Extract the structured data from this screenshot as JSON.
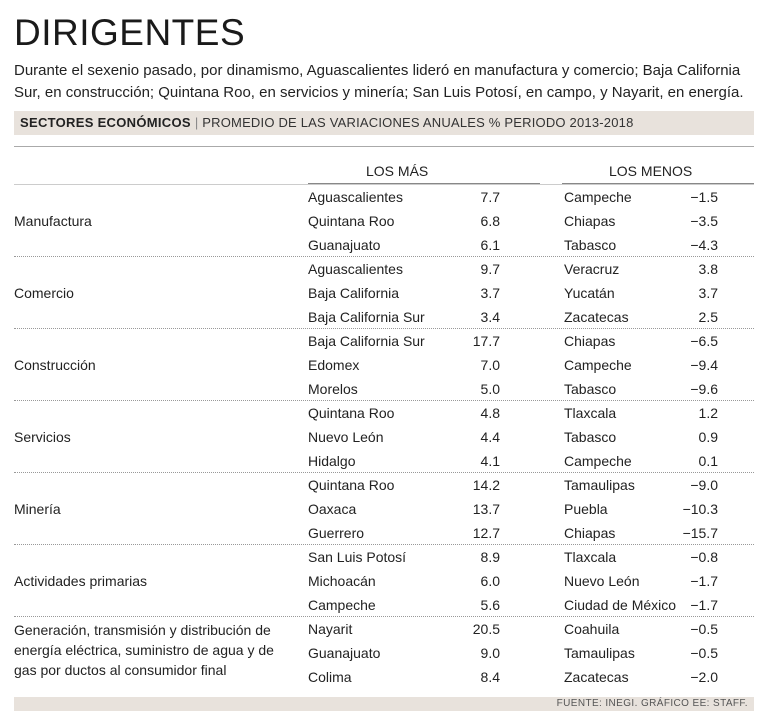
{
  "title": "DIRIGENTES",
  "subtitle": "Durante el sexenio pasado, por dinamismo, Aguascalientes lideró en manufactura y comercio; Baja California Sur, en construcción; Quintana Roo, en servicios y minería; San Luis Potosí, en campo, y Nayarit, en energía.",
  "bar": {
    "section": "SECTORES ECONÓMICOS",
    "separator": "|",
    "measure": "PROMEDIO DE LAS VARIACIONES ANUALES % PERIODO 2013-2018"
  },
  "headers": {
    "more": "LOS MÁS",
    "less": "LOS MENOS"
  },
  "groups": [
    {
      "sector": "Manufactura",
      "more": [
        {
          "state": "Aguascalientes",
          "value": "7.7"
        },
        {
          "state": "Quintana Roo",
          "value": "6.8"
        },
        {
          "state": "Guanajuato",
          "value": "6.1"
        }
      ],
      "less": [
        {
          "state": "Campeche",
          "value": "−1.5"
        },
        {
          "state": "Chiapas",
          "value": "−3.5"
        },
        {
          "state": "Tabasco",
          "value": "−4.3"
        }
      ]
    },
    {
      "sector": "Comercio",
      "more": [
        {
          "state": "Aguascalientes",
          "value": "9.7"
        },
        {
          "state": "Baja California",
          "value": "3.7"
        },
        {
          "state": "Baja California Sur",
          "value": "3.4"
        }
      ],
      "less": [
        {
          "state": "Veracruz",
          "value": "3.8"
        },
        {
          "state": "Yucatán",
          "value": "3.7"
        },
        {
          "state": "Zacatecas",
          "value": "2.5"
        }
      ]
    },
    {
      "sector": "Construcción",
      "more": [
        {
          "state": "Baja California Sur",
          "value": "17.7"
        },
        {
          "state": "Edomex",
          "value": "7.0"
        },
        {
          "state": "Morelos",
          "value": "5.0"
        }
      ],
      "less": [
        {
          "state": "Chiapas",
          "value": "−6.5"
        },
        {
          "state": "Campeche",
          "value": "−9.4"
        },
        {
          "state": "Tabasco",
          "value": "−9.6"
        }
      ]
    },
    {
      "sector": "Servicios",
      "more": [
        {
          "state": "Quintana Roo",
          "value": "4.8"
        },
        {
          "state": "Nuevo León",
          "value": "4.4"
        },
        {
          "state": "Hidalgo",
          "value": "4.1"
        }
      ],
      "less": [
        {
          "state": "Tlaxcala",
          "value": "1.2"
        },
        {
          "state": "Tabasco",
          "value": "0.9"
        },
        {
          "state": "Campeche",
          "value": "0.1"
        }
      ]
    },
    {
      "sector": "Minería",
      "more": [
        {
          "state": "Quintana Roo",
          "value": "14.2"
        },
        {
          "state": "Oaxaca",
          "value": "13.7"
        },
        {
          "state": "Guerrero",
          "value": "12.7"
        }
      ],
      "less": [
        {
          "state": "Tamaulipas",
          "value": "−9.0"
        },
        {
          "state": "Puebla",
          "value": "−10.3"
        },
        {
          "state": "Chiapas",
          "value": "−15.7"
        }
      ]
    },
    {
      "sector": "Actividades primarias",
      "more": [
        {
          "state": "San Luis Potosí",
          "value": "8.9"
        },
        {
          "state": "Michoacán",
          "value": "6.0"
        },
        {
          "state": "Campeche",
          "value": "5.6"
        }
      ],
      "less": [
        {
          "state": "Tlaxcala",
          "value": "−0.8"
        },
        {
          "state": "Nuevo León",
          "value": "−1.7"
        },
        {
          "state": "Ciudad de México",
          "value": "−1.7"
        }
      ]
    },
    {
      "sector": "Generación, transmisión y distribución de energía eléctrica, suministro de agua y de gas por ductos al consumidor final",
      "more": [
        {
          "state": "Nayarit",
          "value": "20.5"
        },
        {
          "state": "Guanajuato",
          "value": "9.0"
        },
        {
          "state": "Colima",
          "value": "8.4"
        }
      ],
      "less": [
        {
          "state": "Coahuila",
          "value": "−0.5"
        },
        {
          "state": "Tamaulipas",
          "value": "−0.5"
        },
        {
          "state": "Zacatecas",
          "value": "−2.0"
        }
      ]
    }
  ],
  "footer": "FUENTE: INEGI. GRÁFICO EE: STAFF."
}
